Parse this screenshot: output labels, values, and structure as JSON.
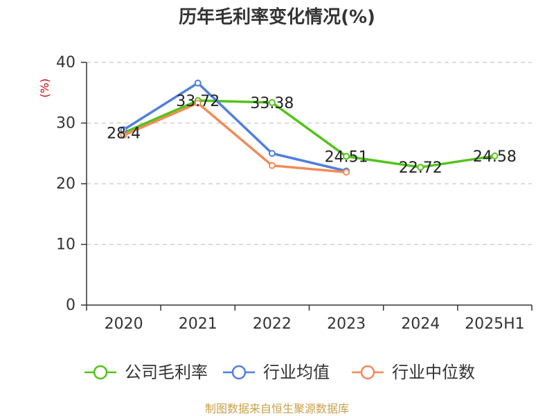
{
  "chart_data": {
    "type": "line",
    "title": "历年毛利率变化情况(%)",
    "ylabel": "(%)",
    "categories": [
      "2020",
      "2021",
      "2022",
      "2023",
      "2024",
      "2025H1"
    ],
    "ylim": [
      0,
      40
    ],
    "yticks": [
      0,
      10,
      20,
      30,
      40
    ],
    "grid": true,
    "legend_position": "bottom",
    "series": [
      {
        "name": "公司毛利率",
        "color": "#52c41a",
        "values": [
          28.4,
          33.72,
          33.38,
          24.51,
          22.72,
          24.58
        ],
        "labels": [
          "28.4",
          "33.72",
          "33.38",
          "24.51",
          "22.72",
          "24.58"
        ]
      },
      {
        "name": "行业均值",
        "color": "#4f7fdf",
        "values": [
          28.9,
          36.6,
          25.0,
          22.1,
          null,
          null
        ]
      },
      {
        "name": "行业中位数",
        "color": "#f28b57",
        "values": [
          28.0,
          33.3,
          23.0,
          21.9,
          null,
          null
        ]
      }
    ],
    "unit_color": "#cc0000"
  },
  "source": {
    "text": "制图数据来自恒生聚源数据库",
    "color": "#c8a04a"
  }
}
